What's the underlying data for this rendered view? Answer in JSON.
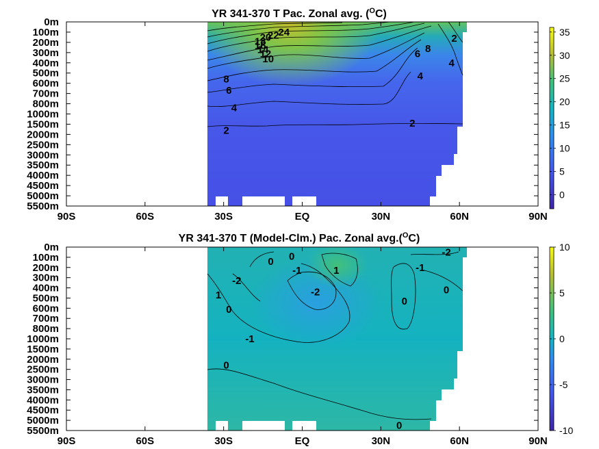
{
  "chart_data": [
    {
      "type": "heatmap",
      "title": "YR 341-370 T Pac. Zonal avg. (",
      "title_sup": "O",
      "title_end": "C)",
      "x_ticks": [
        "90S",
        "60S",
        "30S",
        "EQ",
        "30N",
        "60N",
        "90N"
      ],
      "x_range": [
        -90,
        90
      ],
      "y_ticks": [
        "0m",
        "100m",
        "200m",
        "300m",
        "400m",
        "500m",
        "600m",
        "700m",
        "800m",
        "1000m",
        "1500m",
        "2000m",
        "2500m",
        "3000m",
        "3500m",
        "4000m",
        "4500m",
        "5000m",
        "5500m"
      ],
      "colorbar": {
        "ticks": [
          "35",
          "30",
          "25",
          "20",
          "15",
          "10",
          "5",
          "0"
        ],
        "values": [
          35,
          30,
          25,
          20,
          15,
          10,
          5,
          0
        ],
        "range": [
          -3,
          36
        ]
      },
      "contour_labels": [
        {
          "text": "24",
          "x": -7,
          "y": 1.0
        },
        {
          "text": "22",
          "x": -11,
          "y": 1.3
        },
        {
          "text": "20",
          "x": -14,
          "y": 1.5
        },
        {
          "text": "18",
          "x": -16,
          "y": 1.9
        },
        {
          "text": "16",
          "x": -16,
          "y": 2.3
        },
        {
          "text": "14",
          "x": -15,
          "y": 2.7
        },
        {
          "text": "12",
          "x": -14,
          "y": 3.1
        },
        {
          "text": "10",
          "x": -13,
          "y": 3.6
        },
        {
          "text": "8",
          "x": -29,
          "y": 5.6
        },
        {
          "text": "6",
          "x": -28,
          "y": 6.7
        },
        {
          "text": "4",
          "x": -26,
          "y": 8.4
        },
        {
          "text": "2",
          "x": -29,
          "y": 10.6
        },
        {
          "text": "2",
          "x": 42,
          "y": 9.9
        },
        {
          "text": "4",
          "x": 45,
          "y": 5.3
        },
        {
          "text": "6",
          "x": 44,
          "y": 3.1
        },
        {
          "text": "8",
          "x": 48,
          "y": 2.6
        },
        {
          "text": "2",
          "x": 58,
          "y": 1.6
        },
        {
          "text": "4",
          "x": 57,
          "y": 4.0
        }
      ]
    },
    {
      "type": "heatmap",
      "title": "YR 341-370 T (Model-Clm.) Pac. Zonal avg.(",
      "title_sup": "O",
      "title_end": "C)",
      "x_ticks": [
        "90S",
        "60S",
        "30S",
        "EQ",
        "30N",
        "60N",
        "90N"
      ],
      "x_range": [
        -90,
        90
      ],
      "y_ticks": [
        "0m",
        "100m",
        "200m",
        "300m",
        "400m",
        "500m",
        "600m",
        "700m",
        "800m",
        "1000m",
        "1500m",
        "2000m",
        "2500m",
        "3000m",
        "3500m",
        "4000m",
        "4500m",
        "5000m",
        "5500m"
      ],
      "colorbar": {
        "ticks": [
          "10",
          "5",
          "0",
          "-5",
          "-10"
        ],
        "values": [
          10,
          5,
          0,
          -5,
          -10
        ],
        "range": [
          -10,
          10
        ]
      },
      "contour_labels": [
        {
          "text": "0",
          "x": -12,
          "y": 1.4
        },
        {
          "text": "0",
          "x": -4,
          "y": 0.9
        },
        {
          "text": "-1",
          "x": -2,
          "y": 2.3
        },
        {
          "text": "1",
          "x": 13,
          "y": 2.3
        },
        {
          "text": "-2",
          "x": -25,
          "y": 3.3
        },
        {
          "text": "-2",
          "x": 5,
          "y": 4.4
        },
        {
          "text": "1",
          "x": -32,
          "y": 4.7
        },
        {
          "text": "0",
          "x": -28,
          "y": 6.1
        },
        {
          "text": "-1",
          "x": -20,
          "y": 9.0
        },
        {
          "text": "0",
          "x": 39,
          "y": 5.3
        },
        {
          "text": "-2",
          "x": 55,
          "y": 0.5
        },
        {
          "text": "-1",
          "x": 45,
          "y": 2.0
        },
        {
          "text": "0",
          "x": 55,
          "y": 4.2
        },
        {
          "text": "0",
          "x": -29,
          "y": 11.6
        },
        {
          "text": "0",
          "x": 37,
          "y": 17.5
        }
      ]
    }
  ],
  "colors": {
    "land": "#ffffff",
    "axis": "#000000"
  }
}
